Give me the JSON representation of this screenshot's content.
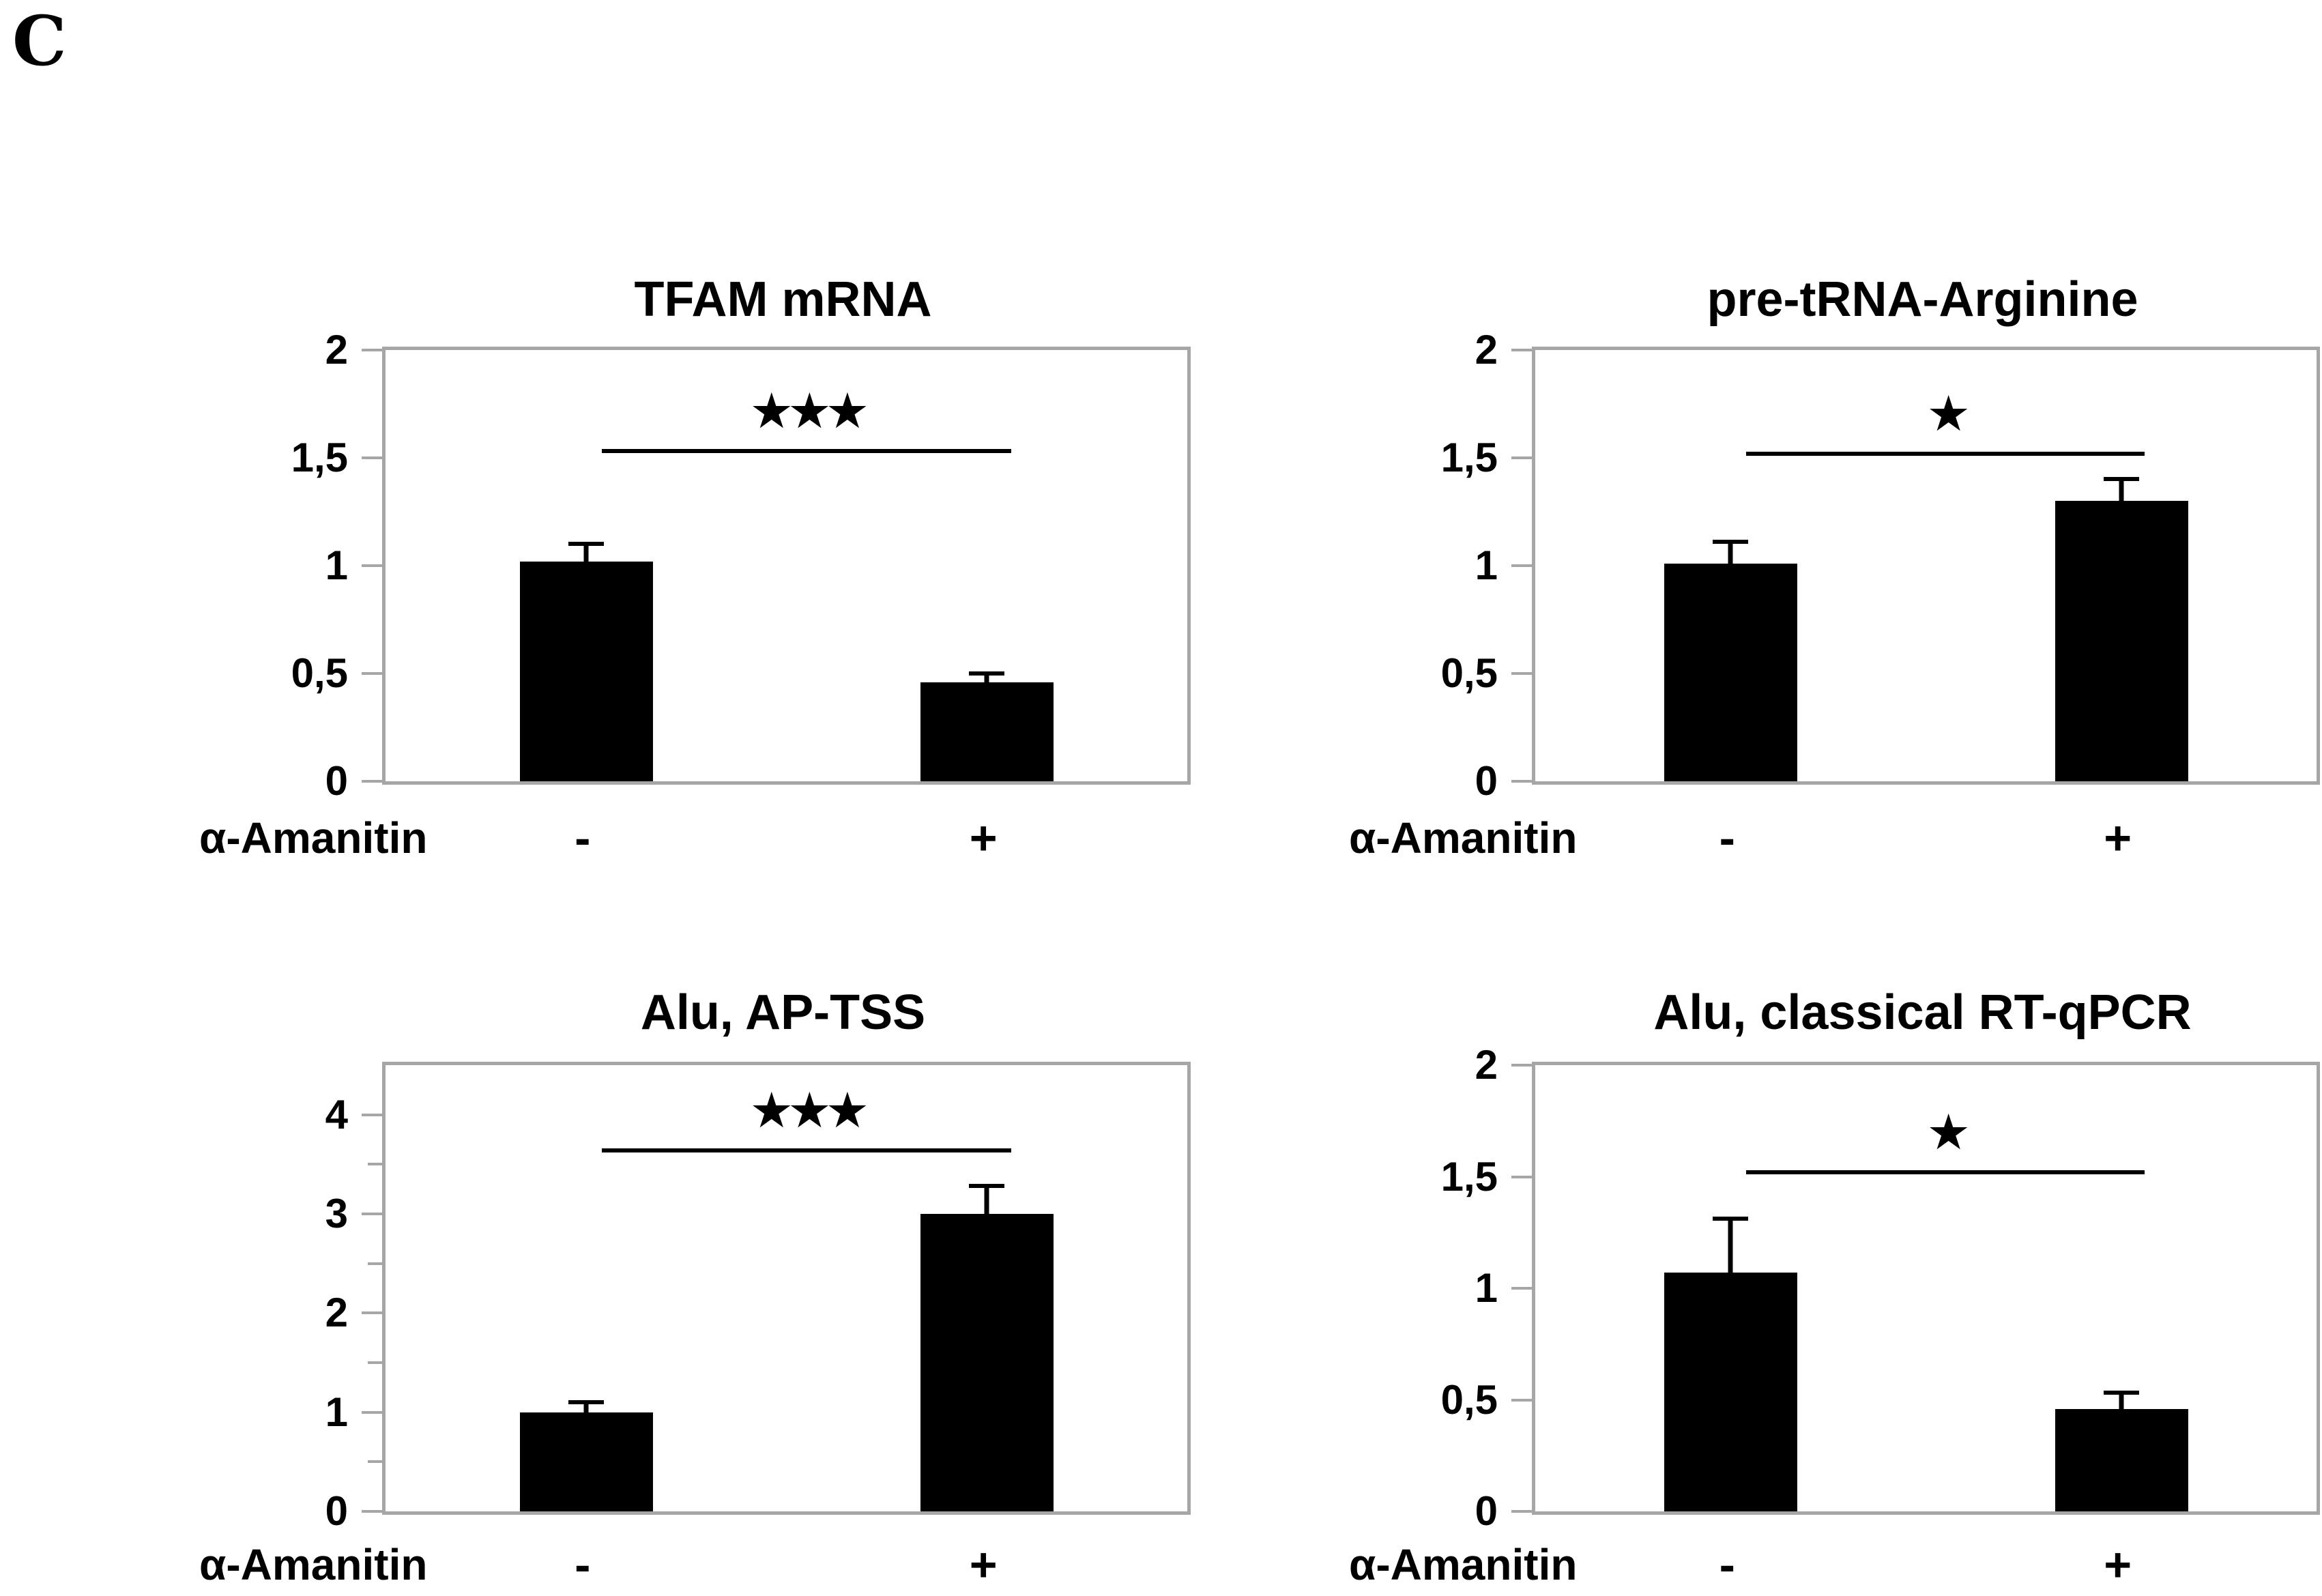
{
  "panel_label": "C",
  "colors": {
    "bar": "#000000",
    "axis_border": "#a6a6a6",
    "text": "#000000",
    "background": "#ffffff"
  },
  "chart_data": [
    {
      "type": "bar",
      "title": "TFAM mRNA",
      "xlabel": "α-Amanitin",
      "categories": [
        "-",
        "+"
      ],
      "values": [
        1.02,
        0.46
      ],
      "errors_plus": [
        0.09,
        0.05
      ],
      "significance": "***",
      "sig_symbol_display": "★★★",
      "sig_line_value": 1.54,
      "ylim": [
        0,
        2
      ],
      "plot_top_value": 2,
      "yticks": [
        "0",
        "0,5",
        "1",
        "1,5",
        "2"
      ],
      "ytick_values": [
        0,
        0.5,
        1,
        1.5,
        2
      ],
      "ytick_minor_values": [],
      "grid": false,
      "legend": "none"
    },
    {
      "type": "bar",
      "title": "pre-tRNA-Arginine",
      "xlabel": "α-Amanitin",
      "categories": [
        "-",
        "+"
      ],
      "values": [
        1.01,
        1.3
      ],
      "errors_plus": [
        0.11,
        0.11
      ],
      "significance": "*",
      "sig_symbol_display": "★",
      "sig_line_value": 1.53,
      "ylim": [
        0,
        2
      ],
      "plot_top_value": 2,
      "yticks": [
        "0",
        "0,5",
        "1",
        "1,5",
        "2"
      ],
      "ytick_values": [
        0,
        0.5,
        1,
        1.5,
        2
      ],
      "ytick_minor_values": [],
      "grid": false,
      "legend": "none"
    },
    {
      "type": "bar",
      "title": "Alu, AP-TSS",
      "xlabel": "α-Amanitin",
      "categories": [
        "-",
        "+"
      ],
      "values": [
        1.0,
        3.0
      ],
      "errors_plus": [
        0.12,
        0.3
      ],
      "significance": "***",
      "sig_symbol_display": "★★★",
      "sig_line_value": 3.66,
      "ylim": [
        0,
        4.5
      ],
      "plot_top_value": 4.5,
      "yticks": [
        "0",
        "1",
        "2",
        "3",
        "4"
      ],
      "ytick_values": [
        0,
        1,
        2,
        3,
        4
      ],
      "ytick_minor_values": [
        0.5,
        1.5,
        2.5,
        3.5
      ],
      "grid": false,
      "legend": "none"
    },
    {
      "type": "bar",
      "title": "Alu, classical RT-qPCR",
      "xlabel": "α-Amanitin",
      "categories": [
        "-",
        "+"
      ],
      "values": [
        1.07,
        0.46
      ],
      "errors_plus": [
        0.25,
        0.08
      ],
      "significance": "*",
      "sig_symbol_display": "★",
      "sig_line_value": 1.53,
      "ylim": [
        0,
        2
      ],
      "plot_top_value": 2,
      "yticks": [
        "0",
        "0,5",
        "1",
        "1,5",
        "2"
      ],
      "ytick_values": [
        0,
        0.5,
        1,
        1.5,
        2
      ],
      "ytick_minor_values": [],
      "grid": false,
      "legend": "none"
    }
  ]
}
